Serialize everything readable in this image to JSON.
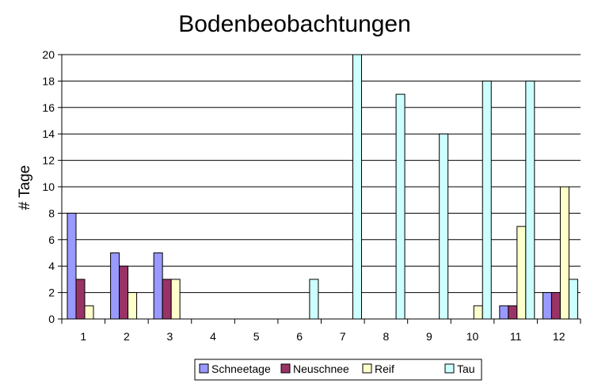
{
  "chart_data": {
    "type": "bar",
    "title": "Bodenbeobachtungen",
    "xlabel": "",
    "ylabel": "# Tage",
    "ylim": [
      0,
      20
    ],
    "yticks": [
      "0",
      "2",
      "4",
      "6",
      "8",
      "10",
      "12",
      "14",
      "16",
      "18",
      "20"
    ],
    "grid": true,
    "legend_position": "bottom",
    "categories": [
      "1",
      "2",
      "3",
      "4",
      "5",
      "6",
      "7",
      "8",
      "9",
      "10",
      "11",
      "12"
    ],
    "series": [
      {
        "name": "Schneetage",
        "color": "#9999ff",
        "values": [
          8,
          5,
          5,
          0,
          0,
          0,
          0,
          0,
          0,
          0,
          1,
          2
        ]
      },
      {
        "name": "Neuschnee",
        "color": "#993366",
        "values": [
          3,
          4,
          3,
          0,
          0,
          0,
          0,
          0,
          0,
          0,
          1,
          2
        ]
      },
      {
        "name": "Reif",
        "color": "#ffffcc",
        "values": [
          1,
          2,
          3,
          0,
          0,
          0,
          0,
          0,
          0,
          1,
          7,
          10
        ]
      },
      {
        "name": "Tau",
        "color": "#ccffff",
        "values": [
          0,
          0,
          0,
          0,
          0,
          3,
          20,
          17,
          14,
          18,
          18,
          3
        ]
      }
    ]
  }
}
